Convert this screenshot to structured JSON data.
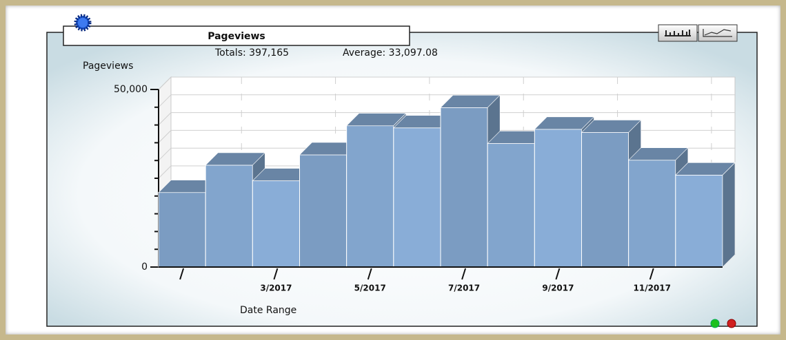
{
  "chart_data": {
    "type": "bar3d",
    "title": "Pageviews",
    "totals": "Totals: 397,165",
    "average": "Average: 33,097.08",
    "y_label": "Pageviews",
    "x_label": "Date Range",
    "categories": [
      null,
      null,
      "3/2017",
      null,
      "5/2017",
      null,
      "7/2017",
      null,
      "9/2017",
      null,
      "11/2017",
      null
    ],
    "values": [
      21000,
      28700,
      24300,
      31600,
      39800,
      39200,
      44900,
      34800,
      38800,
      37900,
      30100,
      25900
    ],
    "color": "#86aad3",
    "ylim": [
      0,
      50000
    ],
    "yticks": [
      0,
      {
        "value": 50000,
        "label": "50,000"
      }
    ],
    "minor_yticks": [
      5000,
      10000,
      15000,
      20000,
      25000,
      30000,
      35000,
      40000,
      45000
    ],
    "grid": true
  }
}
